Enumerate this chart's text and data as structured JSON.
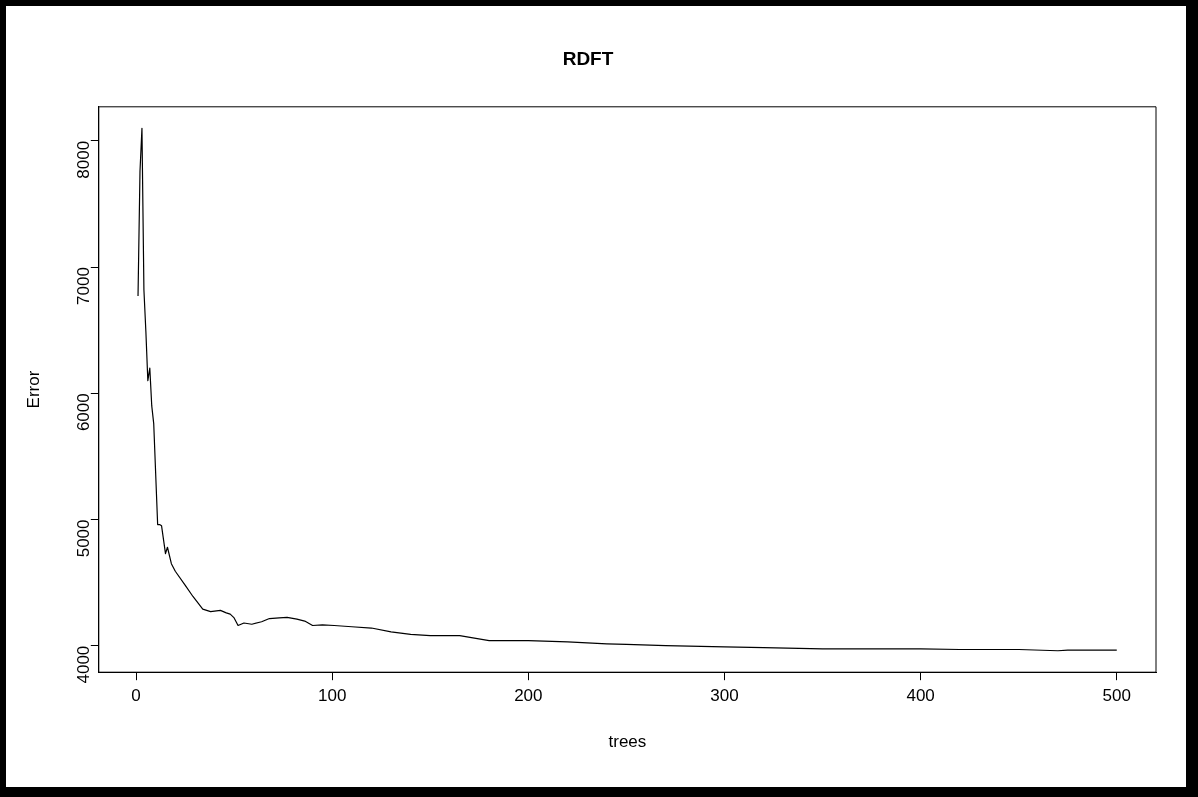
{
  "chart_data": {
    "type": "line",
    "title": "RDFT",
    "xlabel": "trees",
    "ylabel": "Error",
    "xlim": [
      -19,
      520
    ],
    "ylim": [
      3790,
      8270
    ],
    "xticks": [
      0,
      100,
      200,
      300,
      400,
      500
    ],
    "yticks": [
      4000,
      5000,
      6000,
      7000,
      8000
    ],
    "grid": false,
    "legend": false,
    "line_style": "solid",
    "marker": "none",
    "series": [
      {
        "color": "#000000",
        "x": [
          1,
          2,
          3,
          4,
          5,
          6,
          7,
          8,
          9,
          11,
          12,
          13,
          15,
          16,
          18,
          20,
          25,
          29,
          34,
          38,
          43,
          46,
          48,
          50,
          52,
          55,
          59,
          64,
          68,
          73,
          77,
          82,
          86,
          90,
          95,
          101,
          110,
          120,
          130,
          140,
          150,
          165,
          180,
          200,
          220,
          240,
          250,
          270,
          300,
          320,
          350,
          380,
          400,
          420,
          450,
          470,
          475,
          500
        ],
        "values": [
          6770,
          7760,
          8100,
          6820,
          6490,
          6100,
          6200,
          5900,
          5760,
          4960,
          4960,
          4950,
          4730,
          4780,
          4650,
          4590,
          4480,
          4390,
          4290,
          4270,
          4280,
          4260,
          4250,
          4220,
          4160,
          4180,
          4170,
          4190,
          4215,
          4220,
          4225,
          4210,
          4195,
          4160,
          4165,
          4160,
          4150,
          4140,
          4110,
          4090,
          4080,
          4080,
          4040,
          4040,
          4030,
          4015,
          4010,
          4000,
          3990,
          3985,
          3975,
          3975,
          3975,
          3970,
          3970,
          3960,
          3965,
          3965
        ]
      }
    ]
  }
}
